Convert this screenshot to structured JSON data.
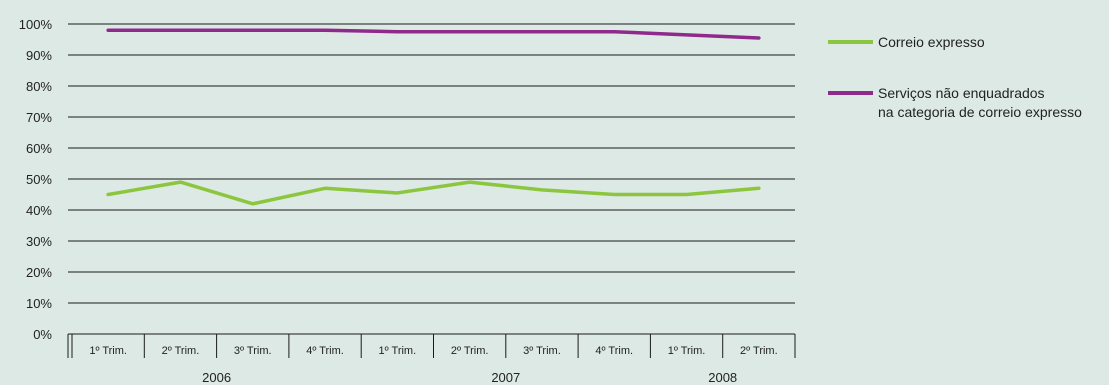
{
  "chart_data": {
    "type": "line",
    "title": "",
    "xlabel": "",
    "ylabel": "",
    "ylim": [
      0,
      100
    ],
    "y_ticks": [
      "0%",
      "10%",
      "20%",
      "30%",
      "40%",
      "50%",
      "60%",
      "70%",
      "80%",
      "90%",
      "100%"
    ],
    "categories": [
      "1º Trim.",
      "2º Trim.",
      "3º Trim.",
      "4º Trim.",
      "1º Trim.",
      "2º Trim.",
      "3º Trim.",
      "4º Trim.",
      "1º Trim.",
      "2º Trim."
    ],
    "year_groups": [
      {
        "label": "2006",
        "count": 4
      },
      {
        "label": "2007",
        "count": 4
      },
      {
        "label": "2008",
        "count": 2
      }
    ],
    "grid": true,
    "legend_position": "right",
    "series": [
      {
        "name": "Correio expresso",
        "color": "#8cc63f",
        "values": [
          45,
          49,
          42,
          47,
          45.5,
          49,
          46.5,
          45,
          45,
          47
        ]
      },
      {
        "name": "Serviços não enquadrados na categoria de correio expresso",
        "legend_lines": [
          "Serviços não enquadrados",
          "na categoria de correio expresso"
        ],
        "color": "#8f2a8c",
        "values": [
          98,
          98,
          98,
          98,
          97.5,
          97.5,
          97.5,
          97.5,
          96.5,
          95.5
        ]
      }
    ]
  }
}
